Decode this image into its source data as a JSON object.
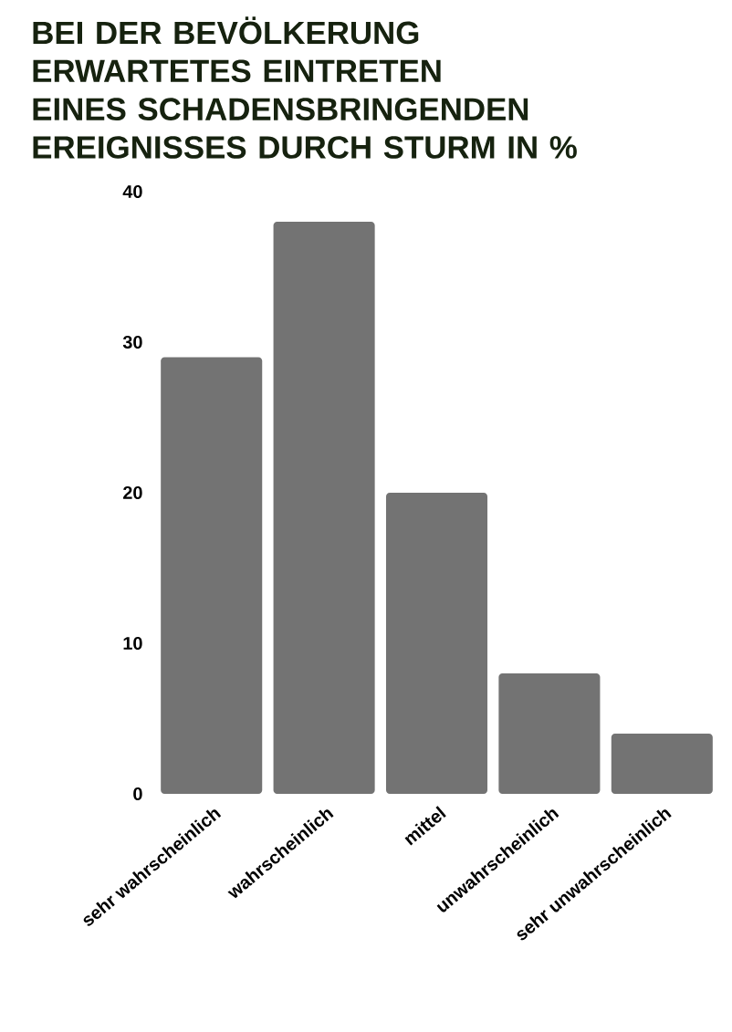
{
  "chart_data": {
    "type": "bar",
    "title": "BEI DER BEVÖLKERUNG ERWARTETES EINTRETEN EINES SCHADENSBRINGENDEN EREIGNISSES DURCH STURM IN %",
    "categories": [
      "sehr wahrscheinlich",
      "wahrscheinlich",
      "mittel",
      "unwahrscheinlich",
      "sehr unwahrscheinlich"
    ],
    "values": [
      29,
      38,
      20,
      8,
      4
    ],
    "color": "#737373",
    "ylim": [
      0,
      40
    ],
    "yticks": [
      0,
      10,
      20,
      30,
      40
    ],
    "grid": false
  }
}
